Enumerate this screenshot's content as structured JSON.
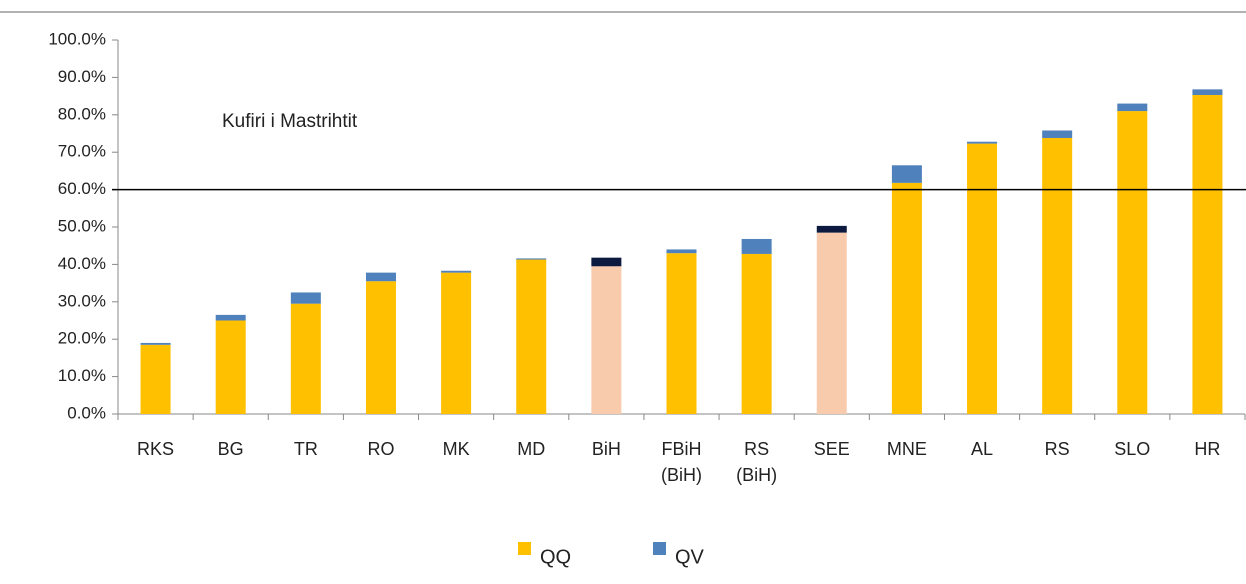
{
  "chart_data": {
    "type": "stacked_bar",
    "annotation": "Kufiri i Mastrihtit",
    "reference_line": 60,
    "categories": [
      "RKS",
      "BG",
      "TR",
      "RO",
      "MK",
      "MD",
      "BiH",
      "FBiH (BiH)",
      "RS (BiH)",
      "SEE",
      "MNE",
      "AL",
      "RS",
      "SLO",
      "HR"
    ],
    "series": [
      {
        "name": "QQ",
        "color": "#FFC000",
        "colors": [
          "#FFC000",
          "#FFC000",
          "#FFC000",
          "#FFC000",
          "#FFC000",
          "#FFC000",
          "#F8CBAD",
          "#FFC000",
          "#FFC000",
          "#F8CBAD",
          "#FFC000",
          "#FFC000",
          "#FFC000",
          "#FFC000",
          "#FFC000"
        ],
        "values": [
          18.5,
          25,
          29.5,
          35.5,
          37.8,
          41.3,
          39.5,
          43,
          42.8,
          48.5,
          61.8,
          72.3,
          73.8,
          81,
          85.3
        ]
      },
      {
        "name": "QV",
        "color": "#4F81BD",
        "colors": [
          "#4F81BD",
          "#4F81BD",
          "#4F81BD",
          "#4F81BD",
          "#4F81BD",
          "#4F81BD",
          "#0D1A40",
          "#4F81BD",
          "#4F81BD",
          "#0D1A40",
          "#4F81BD",
          "#4F81BD",
          "#4F81BD",
          "#4F81BD",
          "#4F81BD"
        ],
        "values": [
          0.5,
          1.5,
          3,
          2.3,
          0.5,
          0.3,
          2.3,
          1,
          4,
          1.8,
          4.7,
          0.5,
          2,
          2,
          1.5
        ]
      }
    ],
    "ylim": [
      0,
      100
    ],
    "yticks": [
      {
        "value": 0,
        "label": "0.0%"
      },
      {
        "value": 10,
        "label": "10.0%"
      },
      {
        "value": 20,
        "label": "20.0%"
      },
      {
        "value": 30,
        "label": "30.0%"
      },
      {
        "value": 40,
        "label": "40.0%"
      },
      {
        "value": 50,
        "label": "50.0%"
      },
      {
        "value": 60,
        "label": "60.0%"
      },
      {
        "value": 70,
        "label": "70.0%"
      },
      {
        "value": 80,
        "label": "80.0%"
      },
      {
        "value": 90,
        "label": "90.0%"
      },
      {
        "value": 100,
        "label": "100.0%"
      }
    ]
  }
}
